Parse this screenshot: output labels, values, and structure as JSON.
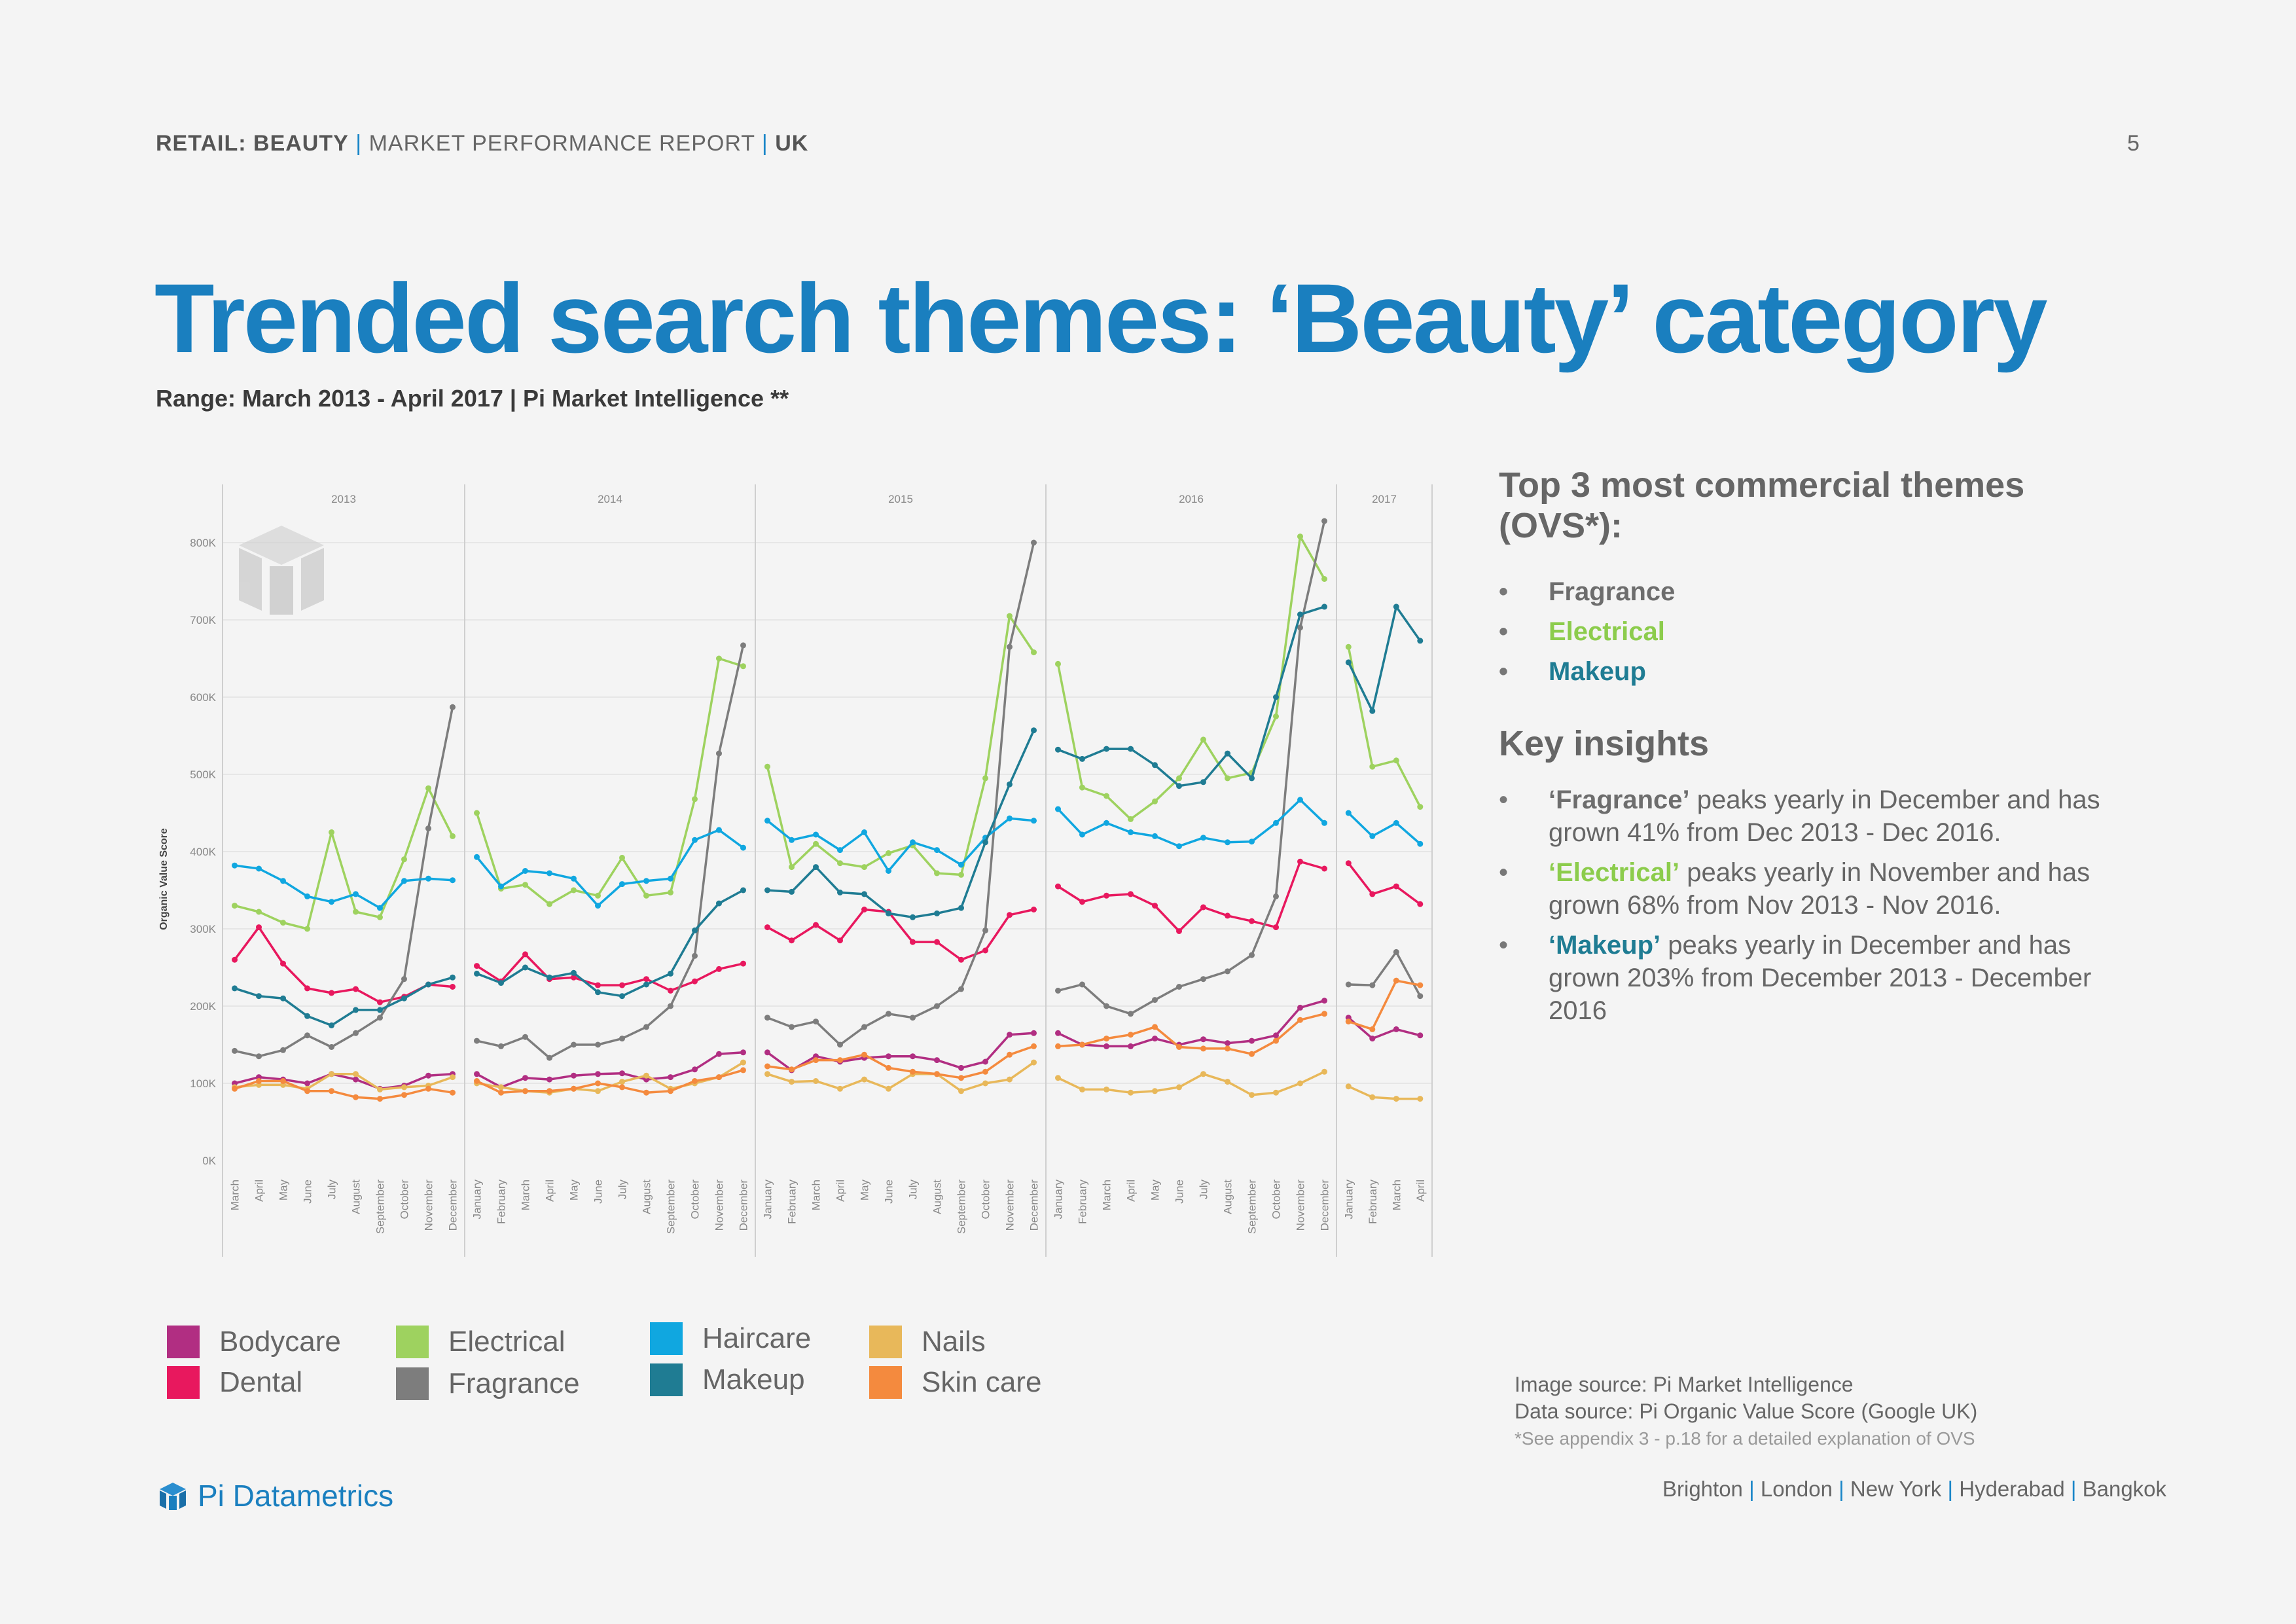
{
  "header": {
    "part1": "RETAIL: BEAUTY",
    "part2": "MARKET PERFORMANCE REPORT",
    "part3": "UK",
    "separator": "|",
    "page_number": "5"
  },
  "title": "Trended search themes: ‘Beauty’ category",
  "subtitle": "Range: March 2013 - April 2017 | Pi Market Intelligence **",
  "top_themes": {
    "heading": "Top 3 most commercial themes (OVS*):",
    "items": [
      {
        "label": "Fragrance",
        "color": "#6d6d6d"
      },
      {
        "label": "Electrical",
        "color": "#8ccc4c"
      },
      {
        "label": "Makeup",
        "color": "#1f7c93"
      }
    ]
  },
  "insights": {
    "heading": "Key insights",
    "items": [
      {
        "theme": "‘Fragrance’",
        "color": "#6d6d6d",
        "text": " peaks yearly in December and has grown 41% from Dec 2013 - Dec 2016."
      },
      {
        "theme": "‘Electrical’",
        "color": "#8ccc4c",
        "text": " peaks yearly in November and has grown 68% from Nov 2013 - Nov 2016."
      },
      {
        "theme": "‘Makeup’",
        "color": "#1f7c93",
        "text": " peaks yearly in December and has grown 203% from December 2013 - December 2016"
      }
    ]
  },
  "legend": [
    {
      "label": "Bodycare",
      "color": "#b12e82"
    },
    {
      "label": "Dental",
      "color": "#e8185e"
    },
    {
      "label": "Electrical",
      "color": "#9ed25f"
    },
    {
      "label": "Fragrance",
      "color": "#7d7d7d"
    },
    {
      "label": "Haircare",
      "color": "#10a7e0"
    },
    {
      "label": "Makeup",
      "color": "#1f7c93"
    },
    {
      "label": "Nails",
      "color": "#e8b85a"
    },
    {
      "label": "Skin care",
      "color": "#f48a3e"
    }
  ],
  "sources": {
    "image": "Image source: Pi Market Intelligence",
    "data": "Data source: Pi Organic Value Score (Google UK)",
    "note": "*See appendix 3 - p.18 for a detailed explanation of OVS"
  },
  "brand": {
    "name": "Pi Datametrics"
  },
  "cities": [
    "Brighton",
    "London",
    "New York",
    "Hyderabad",
    "Bangkok"
  ],
  "chart_data": {
    "type": "line",
    "ylabel": "Organic Value Score",
    "ylim": [
      0,
      850000
    ],
    "yticks": [
      "0K",
      "100K",
      "200K",
      "300K",
      "400K",
      "500K",
      "600K",
      "700K",
      "800K"
    ],
    "year_panels": [
      {
        "year": "2013",
        "months": [
          "March",
          "April",
          "May",
          "June",
          "July",
          "August",
          "September",
          "October",
          "November",
          "December"
        ]
      },
      {
        "year": "2014",
        "months": [
          "January",
          "February",
          "March",
          "April",
          "May",
          "June",
          "July",
          "August",
          "September",
          "October",
          "November",
          "December"
        ]
      },
      {
        "year": "2015",
        "months": [
          "January",
          "February",
          "March",
          "April",
          "May",
          "June",
          "July",
          "August",
          "September",
          "October",
          "November",
          "December"
        ]
      },
      {
        "year": "2016",
        "months": [
          "January",
          "February",
          "March",
          "April",
          "May",
          "June",
          "July",
          "August",
          "September",
          "October",
          "November",
          "December"
        ]
      },
      {
        "year": "2017",
        "months": [
          "January",
          "February",
          "March",
          "April"
        ]
      }
    ],
    "series": [
      {
        "name": "Bodycare",
        "color": "#b12e82",
        "values": [
          100,
          108,
          105,
          100,
          112,
          105,
          93,
          97,
          110,
          112,
          112,
          95,
          107,
          105,
          110,
          112,
          113,
          105,
          108,
          118,
          138,
          140,
          140,
          117,
          135,
          128,
          133,
          135,
          135,
          130,
          120,
          128,
          163,
          165,
          165,
          150,
          148,
          148,
          158,
          150,
          157,
          152,
          155,
          162,
          198,
          207,
          185,
          158,
          170,
          162
        ]
      },
      {
        "name": "Dental",
        "color": "#e8185e",
        "values": [
          260,
          302,
          255,
          223,
          217,
          222,
          205,
          212,
          228,
          225,
          252,
          232,
          267,
          235,
          237,
          227,
          227,
          235,
          220,
          232,
          248,
          255,
          302,
          285,
          305,
          285,
          325,
          322,
          283,
          283,
          260,
          272,
          318,
          325,
          355,
          335,
          343,
          345,
          330,
          297,
          328,
          317,
          310,
          302,
          387,
          378,
          385,
          345,
          355,
          332
        ]
      },
      {
        "name": "Electrical",
        "color": "#9ed25f",
        "values": [
          330,
          322,
          308,
          300,
          425,
          322,
          315,
          390,
          482,
          420,
          450,
          352,
          357,
          332,
          350,
          343,
          392,
          343,
          347,
          468,
          650,
          640,
          510,
          380,
          410,
          385,
          380,
          398,
          408,
          372,
          370,
          495,
          705,
          658,
          643,
          483,
          472,
          442,
          465,
          495,
          545,
          495,
          502,
          575,
          808,
          753,
          665,
          510,
          518,
          458
        ]
      },
      {
        "name": "Fragrance",
        "color": "#7d7d7d",
        "values": [
          142,
          135,
          143,
          162,
          147,
          165,
          185,
          235,
          430,
          587,
          155,
          148,
          160,
          133,
          150,
          150,
          158,
          173,
          200,
          265,
          527,
          667,
          185,
          173,
          180,
          150,
          173,
          190,
          185,
          200,
          222,
          298,
          665,
          800,
          220,
          228,
          200,
          190,
          208,
          225,
          235,
          245,
          266,
          342,
          690,
          828,
          228,
          227,
          270,
          213
        ]
      },
      {
        "name": "Haircare",
        "color": "#10a7e0",
        "values": [
          382,
          378,
          362,
          342,
          335,
          345,
          327,
          362,
          365,
          363,
          393,
          355,
          375,
          372,
          365,
          330,
          358,
          362,
          365,
          415,
          428,
          405,
          440,
          415,
          422,
          402,
          425,
          375,
          412,
          402,
          383,
          418,
          443,
          440,
          455,
          422,
          437,
          425,
          420,
          407,
          418,
          412,
          413,
          437,
          467,
          437,
          450,
          420,
          437,
          410
        ]
      },
      {
        "name": "Makeup",
        "color": "#1f7c93",
        "values": [
          223,
          213,
          210,
          187,
          175,
          195,
          195,
          210,
          228,
          237,
          242,
          230,
          250,
          237,
          243,
          218,
          213,
          228,
          242,
          298,
          333,
          350,
          350,
          348,
          380,
          347,
          345,
          320,
          315,
          320,
          327,
          412,
          487,
          557,
          532,
          520,
          533,
          533,
          512,
          485,
          490,
          527,
          495,
          600,
          707,
          717,
          645,
          582,
          717,
          673
        ]
      },
      {
        "name": "Nails",
        "color": "#e8b85a",
        "values": [
          95,
          98,
          98,
          93,
          112,
          112,
          92,
          95,
          97,
          108,
          100,
          95,
          90,
          88,
          93,
          90,
          102,
          110,
          93,
          100,
          108,
          127,
          112,
          102,
          103,
          93,
          105,
          93,
          112,
          112,
          90,
          100,
          105,
          127,
          107,
          92,
          92,
          88,
          90,
          95,
          112,
          102,
          85,
          88,
          100,
          115,
          96,
          82,
          80,
          80
        ]
      },
      {
        "name": "Skin care",
        "color": "#f48a3e",
        "values": [
          93,
          103,
          103,
          90,
          90,
          82,
          80,
          85,
          93,
          88,
          103,
          88,
          90,
          90,
          93,
          100,
          95,
          88,
          90,
          103,
          108,
          117,
          122,
          118,
          130,
          130,
          137,
          120,
          115,
          112,
          107,
          115,
          137,
          148,
          148,
          150,
          158,
          163,
          173,
          147,
          145,
          145,
          138,
          155,
          182,
          190,
          180,
          170,
          233,
          227
        ]
      }
    ]
  }
}
